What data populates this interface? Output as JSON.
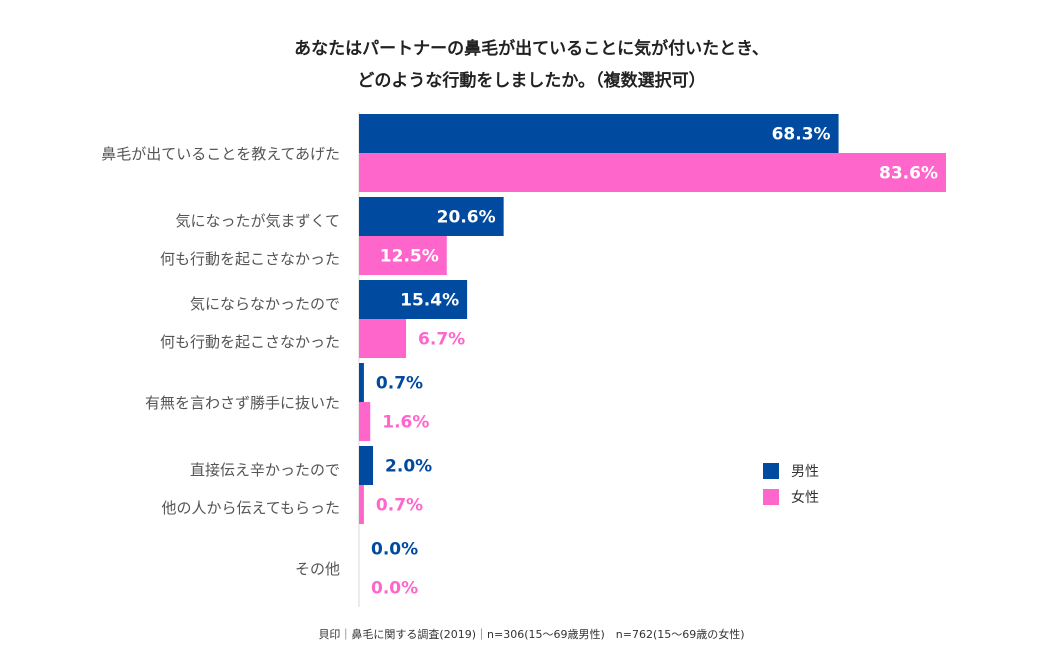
{
  "title_line1": "あなたはパートナーの鼻毛が出ていることに気が付いたとき、",
  "title_line2": "どのような行動をしましたか。（複数選択可）",
  "footer": "貝印｜鼻毛に関する調査(2019)｜n=306(15～69歳男性)　n=762(15～69歳の女性)",
  "colors": {
    "male": "#004aa0",
    "female": "#ff66cc",
    "male_text": "#004aa0",
    "female_text": "#ff66cc",
    "inside_text": "#ffffff"
  },
  "chart_data": {
    "type": "bar",
    "orientation": "horizontal",
    "categories": [
      [
        "鼻毛が出ていることを教えてあげた"
      ],
      [
        "気になったが気まずくて",
        "何も行動を起こさなかった"
      ],
      [
        "気にならなかったので",
        "何も行動を起こさなかった"
      ],
      [
        "有無を言わさず勝手に抜いた"
      ],
      [
        "直接伝え辛かったので",
        "他の人から伝えてもらった"
      ],
      [
        "その他"
      ]
    ],
    "series": [
      {
        "name": "男性",
        "values": [
          68.3,
          20.6,
          15.4,
          0.7,
          2.0,
          0.0
        ],
        "labels": [
          "68.3%",
          "20.6%",
          "15.4%",
          "0.7%",
          "2.0%",
          "0.0%"
        ]
      },
      {
        "name": "女性",
        "values": [
          83.6,
          12.5,
          6.7,
          1.6,
          0.7,
          0.0
        ],
        "labels": [
          "83.6%",
          "12.5%",
          "6.7%",
          "1.6%",
          "0.7%",
          "0.0%"
        ]
      }
    ],
    "xlim": [
      0,
      85
    ],
    "legend_position": "right",
    "grid": false
  }
}
